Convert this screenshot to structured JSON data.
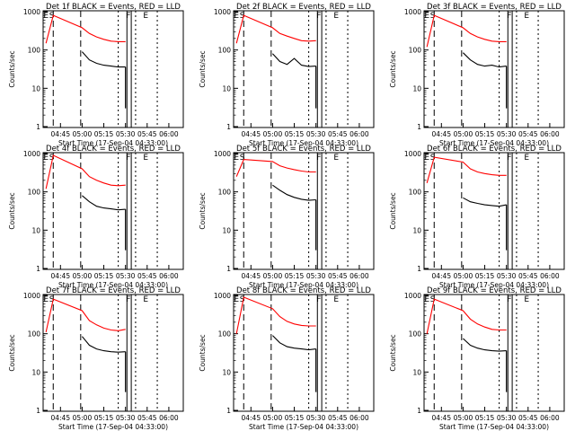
{
  "chart_data": [
    {
      "type": "line",
      "title": "Det 1f BLACK = Events, RED = LLD",
      "ylabel": "Counts/sec",
      "xlabel": "Start Time (17-Sep-04 04:33:00)",
      "x_ticks": [
        "04:45",
        "05:00",
        "05:15",
        "05:30",
        "05:45",
        "06:00"
      ],
      "y_ticks": [
        "1",
        "10",
        "100",
        "1000"
      ],
      "yscale": "log",
      "ylim": [
        1,
        1000
      ],
      "grid": false,
      "markers": [
        "E",
        "S",
        "F",
        "E"
      ],
      "series": [
        {
          "color": "#000000",
          "x": [
            "05:00",
            "05:05",
            "05:10",
            "05:15",
            "05:20",
            "05:25",
            "05:30"
          ],
          "values": [
            90,
            55,
            45,
            40,
            38,
            36,
            36
          ]
        },
        {
          "color": "#ff0000",
          "x": [
            "04:35",
            "04:40",
            "05:00",
            "05:05",
            "05:10",
            "05:15",
            "05:20",
            "05:25",
            "05:30"
          ],
          "values": [
            150,
            800,
            380,
            270,
            220,
            190,
            170,
            165,
            165
          ]
        }
      ]
    },
    {
      "type": "line",
      "title": "Det 2f BLACK = Events, RED = LLD",
      "ylabel": "Counts/sec",
      "xlabel": "Start Time (17-Sep-04 04:33:00)",
      "x_ticks": [
        "04:45",
        "05:00",
        "05:15",
        "05:30",
        "05:45",
        "06:00"
      ],
      "y_ticks": [
        "1",
        "10",
        "100",
        "1000"
      ],
      "yscale": "log",
      "ylim": [
        1,
        1000
      ],
      "grid": false,
      "markers": [
        "E",
        "S",
        "F",
        "E"
      ],
      "series": [
        {
          "color": "#000000",
          "x": [
            "05:00",
            "05:05",
            "05:10",
            "05:15",
            "05:20",
            "05:25",
            "05:30"
          ],
          "values": [
            80,
            50,
            42,
            60,
            40,
            37,
            38
          ]
        },
        {
          "color": "#ff0000",
          "x": [
            "04:35",
            "04:40",
            "05:00",
            "05:05",
            "05:10",
            "05:15",
            "05:20",
            "05:25",
            "05:30"
          ],
          "values": [
            150,
            800,
            380,
            270,
            230,
            200,
            175,
            170,
            175
          ]
        }
      ]
    },
    {
      "type": "line",
      "title": "Det 3f BLACK = Events, RED = LLD",
      "ylabel": "Counts/sec",
      "xlabel": "Start Time (17-Sep-04 04:33:00)",
      "x_ticks": [
        "04:45",
        "05:00",
        "05:15",
        "05:30",
        "05:45",
        "06:00"
      ],
      "y_ticks": [
        "1",
        "10",
        "100",
        "1000"
      ],
      "yscale": "log",
      "ylim": [
        1,
        1000
      ],
      "grid": false,
      "markers": [
        "E",
        "S",
        "F",
        "E"
      ],
      "series": [
        {
          "color": "#000000",
          "x": [
            "05:00",
            "05:05",
            "05:10",
            "05:15",
            "05:20",
            "05:25",
            "05:30"
          ],
          "values": [
            85,
            55,
            42,
            38,
            40,
            36,
            38
          ]
        },
        {
          "color": "#ff0000",
          "x": [
            "04:35",
            "04:40",
            "05:00",
            "05:05",
            "05:10",
            "05:15",
            "05:20",
            "05:25",
            "05:30"
          ],
          "values": [
            120,
            800,
            380,
            270,
            220,
            190,
            170,
            165,
            165
          ]
        }
      ]
    },
    {
      "type": "line",
      "title": "Det 4f BLACK = Events, RED = LLD",
      "ylabel": "Counts/sec",
      "xlabel": "Start Time (17-Sep-04 04:33:00)",
      "x_ticks": [
        "04:45",
        "05:00",
        "05:15",
        "05:30",
        "05:45",
        "06:00"
      ],
      "y_ticks": [
        "1",
        "10",
        "100",
        "1000"
      ],
      "yscale": "log",
      "ylim": [
        1,
        1000
      ],
      "grid": false,
      "markers": [
        "E",
        "S",
        "F",
        "E"
      ],
      "series": [
        {
          "color": "#000000",
          "x": [
            "05:00",
            "05:05",
            "05:10",
            "05:15",
            "05:20",
            "05:25",
            "05:30"
          ],
          "values": [
            80,
            55,
            42,
            38,
            36,
            34,
            35
          ]
        },
        {
          "color": "#ff0000",
          "x": [
            "04:35",
            "04:40",
            "05:00",
            "05:05",
            "05:10",
            "05:15",
            "05:20",
            "05:25",
            "05:30"
          ],
          "values": [
            120,
            900,
            400,
            250,
            200,
            170,
            150,
            145,
            150
          ]
        }
      ]
    },
    {
      "type": "line",
      "title": "Det 5f BLACK = Events, RED = LLD",
      "ylabel": "Counts/sec",
      "xlabel": "Start Time (17-Sep-04 04:33:00)",
      "x_ticks": [
        "04:45",
        "05:00",
        "05:15",
        "05:30",
        "05:45",
        "06:00"
      ],
      "y_ticks": [
        "1",
        "10",
        "100",
        "1000"
      ],
      "yscale": "log",
      "ylim": [
        1,
        1000
      ],
      "grid": false,
      "markers": [
        "E",
        "S",
        "F",
        "E"
      ],
      "series": [
        {
          "color": "#000000",
          "x": [
            "05:00",
            "05:05",
            "05:10",
            "05:15",
            "05:20",
            "05:25",
            "05:30"
          ],
          "values": [
            150,
            110,
            85,
            72,
            64,
            60,
            62
          ]
        },
        {
          "color": "#ff0000",
          "x": [
            "04:35",
            "04:40",
            "05:00",
            "05:05",
            "05:10",
            "05:15",
            "05:20",
            "05:25",
            "05:30"
          ],
          "values": [
            250,
            700,
            620,
            480,
            420,
            380,
            350,
            330,
            330
          ]
        }
      ]
    },
    {
      "type": "line",
      "title": "Det 6f BLACK = Events, RED = LLD",
      "ylabel": "Counts/sec",
      "xlabel": "Start Time (17-Sep-04 04:33:00)",
      "x_ticks": [
        "04:45",
        "05:00",
        "05:15",
        "05:30",
        "05:45",
        "06:00"
      ],
      "y_ticks": [
        "1",
        "10",
        "100",
        "1000"
      ],
      "yscale": "log",
      "ylim": [
        1,
        1000
      ],
      "grid": false,
      "markers": [
        "E",
        "S",
        "F",
        "E"
      ],
      "series": [
        {
          "color": "#000000",
          "x": [
            "05:00",
            "05:05",
            "05:10",
            "05:15",
            "05:20",
            "05:25",
            "05:30"
          ],
          "values": [
            70,
            55,
            50,
            46,
            44,
            42,
            46
          ]
        },
        {
          "color": "#ff0000",
          "x": [
            "04:35",
            "04:40",
            "05:00",
            "05:05",
            "05:10",
            "05:15",
            "05:20",
            "05:25",
            "05:30"
          ],
          "values": [
            170,
            800,
            600,
            400,
            330,
            300,
            280,
            270,
            270
          ]
        }
      ]
    },
    {
      "type": "line",
      "title": "Det 7f BLACK = Events, RED = LLD",
      "ylabel": "Counts/sec",
      "xlabel": "Start Time (17-Sep-04 04:33:00)",
      "x_ticks": [
        "04:45",
        "05:00",
        "05:15",
        "05:30",
        "05:45",
        "06:00"
      ],
      "y_ticks": [
        "1",
        "10",
        "100",
        "1000"
      ],
      "yscale": "log",
      "ylim": [
        1,
        1000
      ],
      "grid": false,
      "markers": [
        "E",
        "S",
        "F",
        "E"
      ],
      "series": [
        {
          "color": "#000000",
          "x": [
            "05:00",
            "05:05",
            "05:10",
            "05:15",
            "05:20",
            "05:25",
            "05:30"
          ],
          "values": [
            85,
            50,
            40,
            36,
            34,
            33,
            34
          ]
        },
        {
          "color": "#ff0000",
          "x": [
            "04:35",
            "04:40",
            "05:00",
            "05:05",
            "05:10",
            "05:15",
            "05:20",
            "05:25",
            "05:30"
          ],
          "values": [
            110,
            800,
            400,
            220,
            170,
            140,
            125,
            120,
            130
          ]
        }
      ]
    },
    {
      "type": "line",
      "title": "Det 8f BLACK = Events, RED = LLD",
      "ylabel": "Counts/sec",
      "xlabel": "Start Time (17-Sep-04 04:33:00)",
      "x_ticks": [
        "04:45",
        "05:00",
        "05:15",
        "05:30",
        "05:45",
        "06:00"
      ],
      "y_ticks": [
        "1",
        "10",
        "100",
        "1000"
      ],
      "yscale": "log",
      "ylim": [
        1,
        1000
      ],
      "grid": false,
      "markers": [
        "E",
        "S",
        "F",
        "E"
      ],
      "series": [
        {
          "color": "#000000",
          "x": [
            "05:00",
            "05:05",
            "05:10",
            "05:15",
            "05:20",
            "05:25",
            "05:30"
          ],
          "values": [
            90,
            58,
            46,
            42,
            40,
            38,
            40
          ]
        },
        {
          "color": "#ff0000",
          "x": [
            "04:35",
            "04:40",
            "05:00",
            "05:05",
            "05:10",
            "05:15",
            "05:20",
            "05:25",
            "05:30"
          ],
          "values": [
            100,
            900,
            450,
            280,
            210,
            180,
            165,
            160,
            160
          ]
        }
      ]
    },
    {
      "type": "line",
      "title": "Det 9f BLACK = Events, RED = LLD",
      "ylabel": "Counts/sec",
      "xlabel": "Start Time (17-Sep-04 04:33:00)",
      "x_ticks": [
        "04:45",
        "05:00",
        "05:15",
        "05:30",
        "05:45",
        "06:00"
      ],
      "y_ticks": [
        "1",
        "10",
        "100",
        "1000"
      ],
      "yscale": "log",
      "ylim": [
        1,
        1000
      ],
      "grid": false,
      "markers": [
        "E",
        "S",
        "F",
        "E"
      ],
      "series": [
        {
          "color": "#000000",
          "x": [
            "05:00",
            "05:05",
            "05:10",
            "05:15",
            "05:20",
            "05:25",
            "05:30"
          ],
          "values": [
            75,
            50,
            42,
            38,
            36,
            35,
            36
          ]
        },
        {
          "color": "#ff0000",
          "x": [
            "04:35",
            "04:40",
            "05:00",
            "05:05",
            "05:10",
            "05:15",
            "05:20",
            "05:25",
            "05:30"
          ],
          "values": [
            100,
            800,
            400,
            240,
            180,
            150,
            130,
            125,
            125
          ]
        }
      ]
    }
  ]
}
